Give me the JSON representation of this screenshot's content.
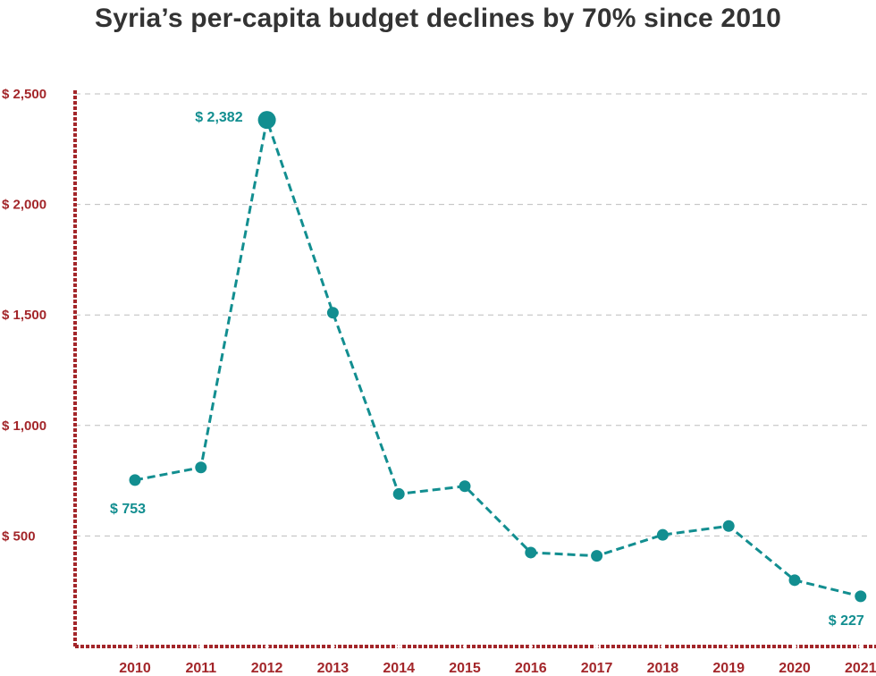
{
  "title": "Syria’s per-capita budget declines by 70% since 2010",
  "colors": {
    "title": "#333333",
    "axis": "#a3262a",
    "series": "#128e90",
    "grid": "#bdbdbd"
  },
  "chart_data": {
    "type": "line",
    "title": "Syria’s per-capita budget declines by 70% since 2010",
    "xlabel": "",
    "ylabel": "",
    "categories": [
      "2010",
      "2011",
      "2012",
      "2013",
      "2014",
      "2015",
      "2016",
      "2017",
      "2018",
      "2019",
      "2020",
      "2021"
    ],
    "series": [
      {
        "values": [
          753,
          810,
          2382,
          1510,
          690,
          725,
          425,
          410,
          505,
          545,
          300,
          227
        ]
      }
    ],
    "ylim": [
      0,
      2500
    ],
    "yticks": [
      500,
      1000,
      1500,
      2000,
      2500
    ],
    "ytick_labels": [
      "$ 500",
      "$ 1,000",
      "$ 1,500",
      "$ 2,000",
      "$ 2,500"
    ],
    "grid": true,
    "line_style": "dashed",
    "data_labels": [
      {
        "index": 0,
        "text": "$ 753"
      },
      {
        "index": 2,
        "text": "$ 2,382"
      },
      {
        "index": 11,
        "text": "$ 227"
      }
    ]
  }
}
